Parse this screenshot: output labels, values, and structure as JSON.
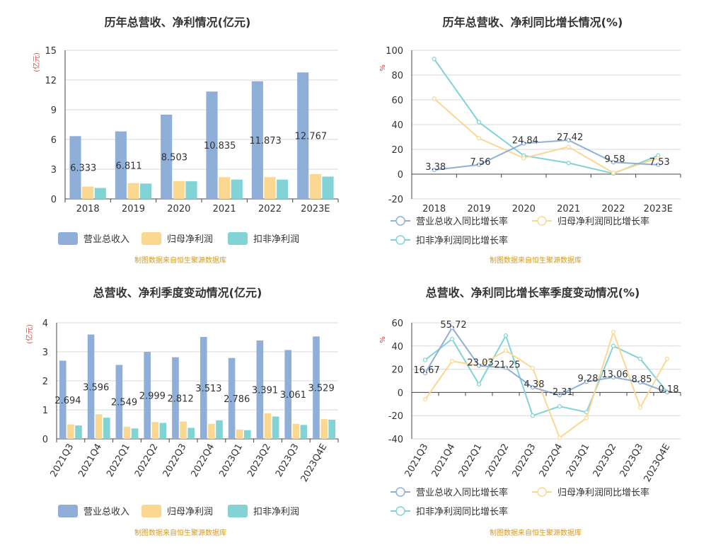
{
  "colors": {
    "revenue": "#8fafd9",
    "netprofit": "#fbd892",
    "deducted": "#82d3d6",
    "grid": "#d9d9d9",
    "axis": "#444444",
    "unit": "#e04646",
    "source": "#d19a1f"
  },
  "source_note": "制图数据来自恒生聚源数据库",
  "chart_data": [
    {
      "type": "bar",
      "title": "历年总营收、净利情况(亿元)",
      "unit": "(亿元)",
      "categories": [
        "2018",
        "2019",
        "2020",
        "2021",
        "2022",
        "2023E"
      ],
      "ylim": [
        0,
        15
      ],
      "yticks": [
        "0",
        "3",
        "6",
        "9",
        "12",
        "15"
      ],
      "series": [
        {
          "name": "营业总收入",
          "values": [
            6.333,
            6.811,
            8.503,
            10.835,
            11.873,
            12.767
          ]
        },
        {
          "name": "归母净利润",
          "values": [
            1.25,
            1.6,
            1.8,
            2.2,
            2.2,
            2.5
          ]
        },
        {
          "name": "扣非净利润",
          "values": [
            1.1,
            1.55,
            1.78,
            1.95,
            1.95,
            2.25
          ]
        }
      ],
      "data_labels": [
        "6.333",
        "6.811",
        "8.503",
        "10.835",
        "11.873",
        "12.767"
      ]
    },
    {
      "type": "line",
      "title": "历年总营收、净利同比增长情况(%)",
      "unit": "%",
      "categories": [
        "2018",
        "2019",
        "2020",
        "2021",
        "2022",
        "2023E"
      ],
      "ylim": [
        -20,
        100
      ],
      "yticks": [
        "-20",
        "0",
        "20",
        "40",
        "60",
        "80",
        "100"
      ],
      "series": [
        {
          "name": "营业总收入同比增长率",
          "values": [
            3.38,
            7.56,
            24.84,
            27.42,
            9.58,
            7.53
          ]
        },
        {
          "name": "归母净利润同比增长率",
          "values": [
            61,
            29,
            13,
            22,
            1,
            13
          ]
        },
        {
          "name": "扣非净利润同比增长率",
          "values": [
            93,
            42,
            15,
            9,
            0.5,
            15
          ]
        }
      ],
      "data_labels": [
        "3.38",
        "7.56",
        "24.84",
        "27.42",
        "9.58",
        "7.53"
      ]
    },
    {
      "type": "bar",
      "title": "总营收、净利季度变动情况(亿元)",
      "unit": "(亿元)",
      "categories": [
        "2021Q3",
        "2021Q4",
        "2022Q1",
        "2022Q2",
        "2022Q3",
        "2022Q4",
        "2023Q1",
        "2023Q2",
        "2023Q3",
        "2023Q4E"
      ],
      "ylim": [
        0,
        4
      ],
      "yticks": [
        "0",
        "1",
        "2",
        "3",
        "4"
      ],
      "series": [
        {
          "name": "营业总收入",
          "values": [
            2.694,
            3.596,
            2.549,
            2.999,
            2.812,
            3.513,
            2.786,
            3.391,
            3.061,
            3.529
          ]
        },
        {
          "name": "归母净利润",
          "values": [
            0.5,
            0.85,
            0.42,
            0.58,
            0.6,
            0.52,
            0.32,
            0.88,
            0.52,
            0.68
          ]
        },
        {
          "name": "扣非净利润",
          "values": [
            0.46,
            0.73,
            0.36,
            0.55,
            0.38,
            0.64,
            0.3,
            0.77,
            0.48,
            0.66
          ]
        }
      ],
      "data_labels": [
        "2.694",
        "3.596",
        "2.549",
        "2.999",
        "2.812",
        "3.513",
        "2.786",
        "3.391",
        "3.061",
        "3.529"
      ]
    },
    {
      "type": "line",
      "title": "总营收、净利同比增长率季度变动情况(%)",
      "unit": "%",
      "categories": [
        "2021Q3",
        "2021Q4",
        "2022Q1",
        "2022Q2",
        "2022Q3",
        "2022Q4",
        "2023Q1",
        "2023Q2",
        "2023Q3",
        "2023Q4E"
      ],
      "ylim": [
        -40,
        60
      ],
      "yticks": [
        "-40",
        "-20",
        "0",
        "20",
        "40",
        "60"
      ],
      "series": [
        {
          "name": "营业总收入同比增长率",
          "values": [
            16.67,
            55.72,
            23.03,
            21.25,
            4.38,
            -2.31,
            9.28,
            13.06,
            8.85,
            0.18
          ]
        },
        {
          "name": "归母净利润同比增长率",
          "values": [
            -6,
            27,
            23,
            36,
            21,
            -39,
            -22,
            52,
            -13,
            29
          ]
        },
        {
          "name": "扣非净利润同比增长率",
          "values": [
            28,
            46,
            7,
            49,
            -20,
            -12,
            -17,
            40,
            29,
            0.5
          ]
        }
      ],
      "data_labels": [
        "16.67",
        "55.72",
        "23.03",
        "21.25",
        "4.38",
        "-2.31",
        "9.28",
        "13.06",
        "8.85",
        "0.18"
      ]
    }
  ]
}
